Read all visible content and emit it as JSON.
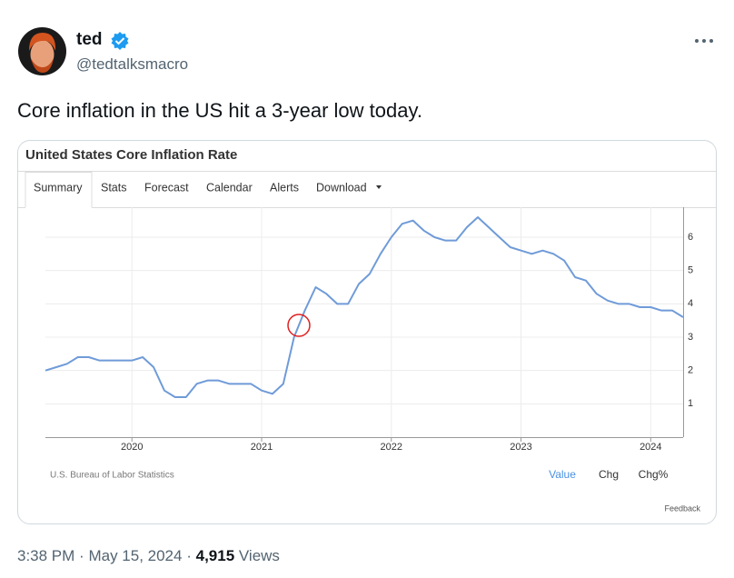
{
  "author": {
    "name": "ted",
    "handle": "@tedtalksmacro"
  },
  "text": "Core inflation in the US hit a 3-year low today.",
  "card": {
    "title": "United States Core Inflation Rate",
    "tabs": [
      "Summary",
      "Stats",
      "Forecast",
      "Calendar",
      "Alerts",
      "Download"
    ],
    "source": "U.S. Bureau of Labor Statistics",
    "modes": [
      "Value",
      "Chg",
      "Chg%"
    ],
    "feedback": "Feedback"
  },
  "chart_data": {
    "type": "line",
    "color": "#6f9bd8",
    "grid": true,
    "x": [
      2019.333,
      2019.417,
      2019.5,
      2019.583,
      2019.667,
      2019.75,
      2019.833,
      2019.917,
      2020,
      2020.083,
      2020.167,
      2020.25,
      2020.333,
      2020.417,
      2020.5,
      2020.583,
      2020.667,
      2020.75,
      2020.833,
      2020.917,
      2021,
      2021.083,
      2021.167,
      2021.25,
      2021.333,
      2021.417,
      2021.5,
      2021.583,
      2021.667,
      2021.75,
      2021.833,
      2021.917,
      2022,
      2022.083,
      2022.167,
      2022.25,
      2022.333,
      2022.417,
      2022.5,
      2022.583,
      2022.667,
      2022.75,
      2022.833,
      2022.917,
      2023,
      2023.083,
      2023.167,
      2023.25,
      2023.333,
      2023.417,
      2023.5,
      2023.583,
      2023.667,
      2023.75,
      2023.833,
      2023.917,
      2024,
      2024.083,
      2024.167,
      2024.25
    ],
    "values": [
      2.0,
      2.1,
      2.2,
      2.4,
      2.4,
      2.3,
      2.3,
      2.3,
      2.3,
      2.4,
      2.1,
      1.4,
      1.2,
      1.2,
      1.6,
      1.7,
      1.7,
      1.6,
      1.6,
      1.6,
      1.4,
      1.3,
      1.6,
      3.0,
      3.8,
      4.5,
      4.3,
      4.0,
      4.0,
      4.6,
      4.9,
      5.5,
      6.0,
      6.4,
      6.5,
      6.2,
      6.0,
      5.9,
      5.9,
      6.3,
      6.6,
      6.3,
      6.0,
      5.7,
      5.6,
      5.5,
      5.6,
      5.5,
      5.3,
      4.8,
      4.7,
      4.3,
      4.1,
      4.0,
      4.0,
      3.9,
      3.9,
      3.8,
      3.8,
      3.6
    ],
    "xlim": [
      2019.333,
      2024.25
    ],
    "xticks": [
      2020,
      2021,
      2022,
      2023,
      2024
    ],
    "ylim": [
      0,
      6.9
    ],
    "yticks": [
      1,
      2,
      3,
      4,
      5,
      6
    ]
  },
  "footer": {
    "time": "3:38 PM",
    "separator": "·",
    "date": "May 15, 2024",
    "views": "4,915",
    "views_label": "Views"
  }
}
